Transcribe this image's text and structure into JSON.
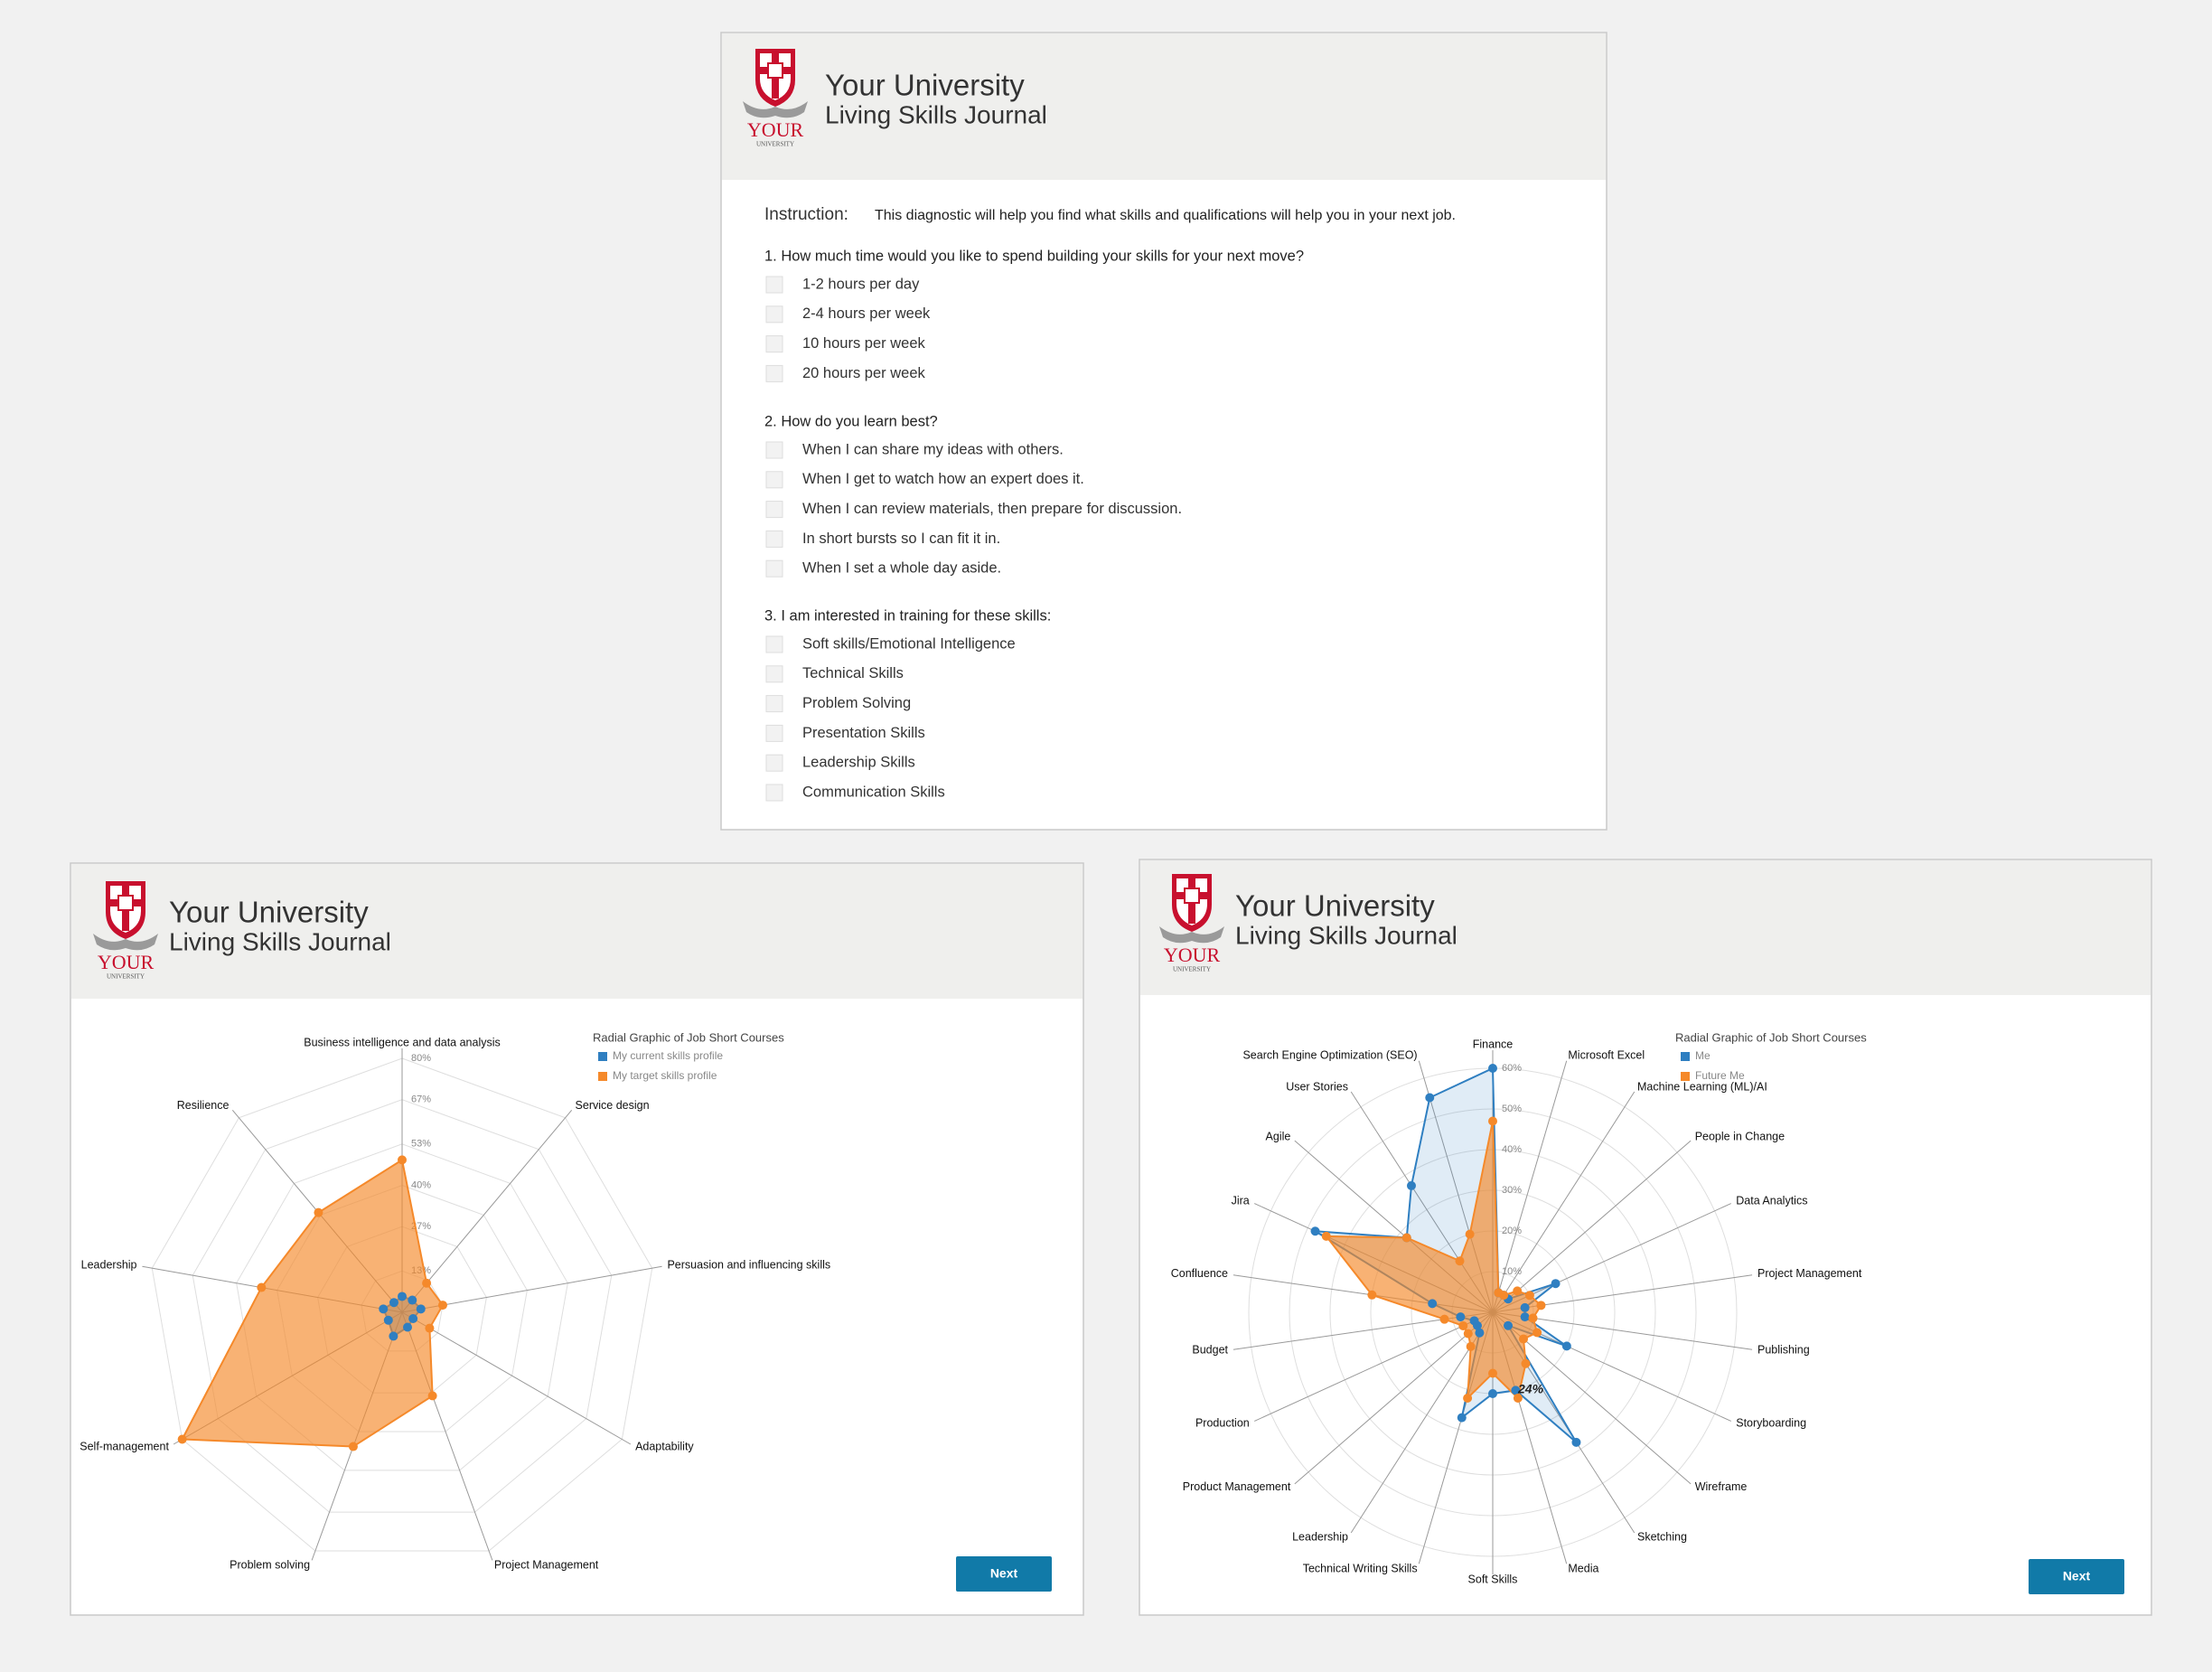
{
  "header": {
    "title": "Your University",
    "subtitle": "Living Skills Journal",
    "logo_top": "YOUR",
    "logo_bottom": "UNIVERSITY"
  },
  "form": {
    "instruction_label": "Instruction:",
    "instruction": "This diagnostic will help you find what skills and qualifications will help you in your next job.",
    "questions": [
      {
        "text": "1. How much time would you like to spend building your skills for your next move?",
        "options": [
          "1-2 hours per day",
          "2-4 hours per week",
          "10 hours per week",
          "20 hours per week"
        ]
      },
      {
        "text": "2. How do you learn best?",
        "options": [
          "When I can share my ideas with others.",
          "When I get to watch how an expert does it.",
          "When I can review materials, then prepare for discussion.",
          "In short bursts so I can fit it in.",
          "When I set a whole day aside."
        ]
      },
      {
        "text": "3. I am interested in training for these skills:",
        "options": [
          "Soft skills/Emotional Intelligence",
          "Technical Skills",
          "Problem Solving",
          "Presentation Skills",
          "Leadership Skills",
          "Communication Skills"
        ]
      }
    ]
  },
  "button": "Next",
  "chart_data": [
    {
      "type": "radar",
      "title": "Radial Graphic of Job Short Courses",
      "grid": "polygon",
      "categories": [
        "Business intelligence and data analysis",
        "Service design",
        "Persuasion and influencing skills",
        "Adaptability",
        "Project Management",
        "Problem solving",
        "Self-management",
        "Leadership",
        "Resilience"
      ],
      "series": [
        {
          "name": "My current skills profile",
          "color": "#2f7fc1",
          "values": [
            5,
            5,
            6,
            4,
            5,
            8,
            5,
            6,
            4
          ]
        },
        {
          "name": "My target skills profile",
          "color": "#f5892a",
          "values": [
            48,
            12,
            13,
            10,
            28,
            45,
            80,
            45,
            41
          ]
        }
      ],
      "ylim": [
        0,
        80
      ],
      "yticks": [
        {
          "value": 13,
          "label": "13%"
        },
        {
          "value": 27,
          "label": "27%"
        },
        {
          "value": 40,
          "label": "40%"
        },
        {
          "value": 53,
          "label": "53%"
        },
        {
          "value": 67,
          "label": "67%"
        },
        {
          "value": 80,
          "label": "80%"
        }
      ]
    },
    {
      "type": "radar",
      "title": "Radial Graphic of Job Short Courses",
      "grid": "circle",
      "annotation": "24%",
      "categories": [
        "Finance",
        "Microsoft Excel",
        "Machine Learning (ML)/AI",
        "People in Change",
        "Data Analytics",
        "Project Management",
        "Publishing",
        "Storyboarding",
        "Wireframe",
        "Sketching",
        "Media",
        "Soft Skills",
        "Technical Writing Skills",
        "Leadership",
        "Product Management",
        "Production",
        "Budget",
        "Confluence",
        "Jira",
        "Agile",
        "User Stories",
        "Search Engine Optimization (SEO)"
      ],
      "series": [
        {
          "name": "Me",
          "color": "#2f7fc1",
          "values": [
            60,
            5,
            5,
            5,
            17,
            8,
            8,
            20,
            5,
            38,
            20,
            20,
            27,
            6,
            5,
            5,
            8,
            15,
            48,
            28,
            37,
            55
          ]
        },
        {
          "name": "Future Me",
          "color": "#f5892a",
          "values": [
            47,
            5,
            5,
            8,
            10,
            12,
            10,
            12,
            10,
            15,
            22,
            15,
            22,
            10,
            8,
            8,
            12,
            30,
            45,
            28,
            15,
            20
          ]
        }
      ],
      "ylim": [
        0,
        60
      ],
      "yticks": [
        {
          "value": 10,
          "label": "10%"
        },
        {
          "value": 20,
          "label": "20%"
        },
        {
          "value": 30,
          "label": "30%"
        },
        {
          "value": 40,
          "label": "40%"
        },
        {
          "value": 50,
          "label": "50%"
        },
        {
          "value": 60,
          "label": "60%"
        }
      ]
    }
  ]
}
